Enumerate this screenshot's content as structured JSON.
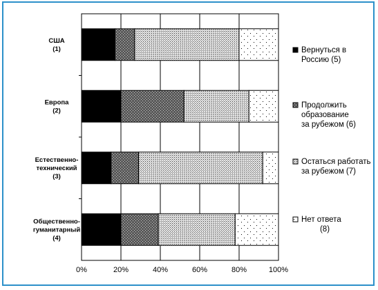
{
  "chart_data": {
    "type": "bar",
    "orientation": "horizontal",
    "stacked": "100%",
    "categories": [
      [
        "США",
        "(1)"
      ],
      [
        "Европа",
        "(2)"
      ],
      [
        "Естественно-",
        "технический",
        "(3)"
      ],
      [
        "Общественно-",
        "гуманитарный",
        "(4)"
      ]
    ],
    "series": [
      {
        "name": [
          "Вернуться в",
          "Россию (5)"
        ],
        "values": [
          17,
          20,
          15,
          20
        ],
        "color": "#000000",
        "pattern": "solid"
      },
      {
        "name": [
          "Продолжить",
          "образование",
          "за рубежом (6)"
        ],
        "values": [
          10,
          32,
          14,
          19
        ],
        "color": "#555555",
        "pattern": "dark-dots"
      },
      {
        "name": [
          "Остаться работать",
          "за рубежом (7)"
        ],
        "values": [
          53,
          33,
          63,
          39
        ],
        "color": "#bbbbbb",
        "pattern": "medium-dots"
      },
      {
        "name": [
          "Нет ответа",
          "(8)"
        ],
        "values": [
          20,
          15,
          8,
          22
        ],
        "color": "#ffffff",
        "pattern": "sparse-dots"
      }
    ],
    "x_ticks": [
      "0%",
      "20%",
      "40%",
      "60%",
      "80%",
      "100%"
    ],
    "xlim": [
      0,
      100
    ],
    "grid": true,
    "legend_position": "right"
  }
}
